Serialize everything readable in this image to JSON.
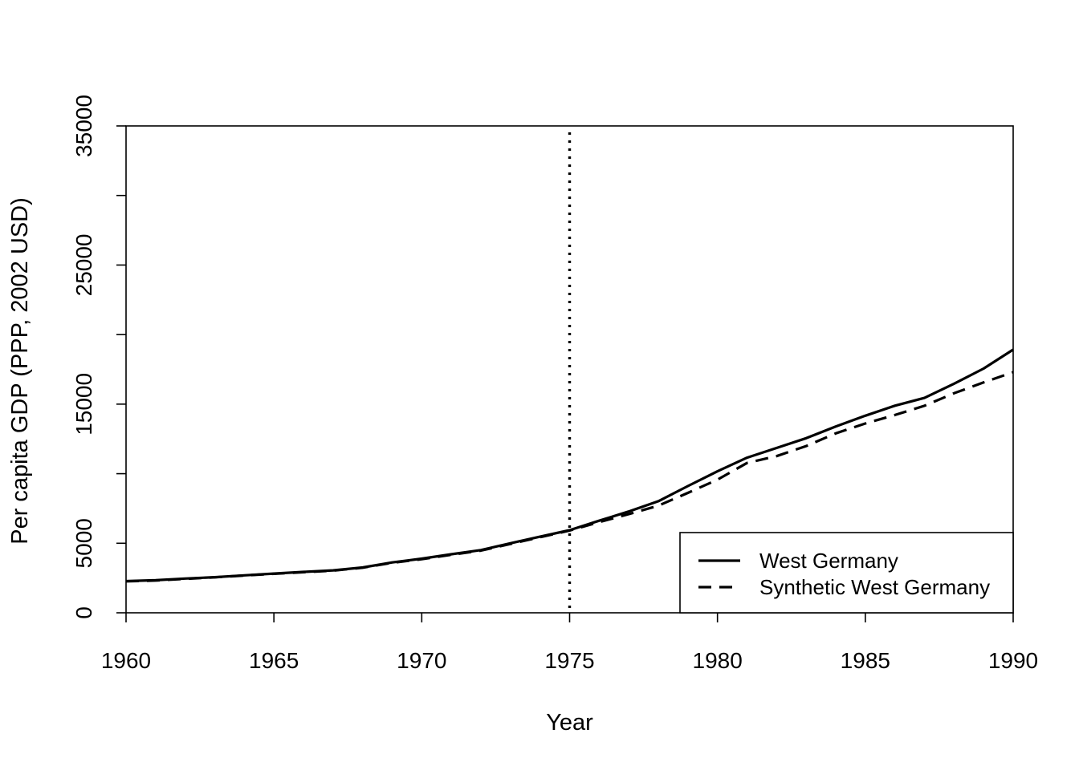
{
  "chart_data": {
    "type": "line",
    "title": "",
    "xlabel": "Year",
    "ylabel": "Per capita GDP (PPP, 2002 USD)",
    "xlim": [
      1960,
      1990
    ],
    "ylim": [
      0,
      35000
    ],
    "x_ticks": [
      "1960",
      "1965",
      "1970",
      "1975",
      "1980",
      "1985",
      "1990"
    ],
    "y_ticks": [
      "0",
      "5000",
      "15000",
      "25000",
      "35000"
    ],
    "y_minor_ticks": [
      10000,
      20000,
      30000
    ],
    "grid": false,
    "legend_position": "bottom-right",
    "reference_line": {
      "x": 1975,
      "style": "dotted"
    },
    "x": [
      1960,
      1961,
      1962,
      1963,
      1964,
      1965,
      1966,
      1967,
      1968,
      1969,
      1970,
      1971,
      1972,
      1973,
      1974,
      1975,
      1976,
      1977,
      1978,
      1979,
      1980,
      1981,
      1982,
      1983,
      1984,
      1985,
      1986,
      1987,
      1988,
      1989,
      1990
    ],
    "series": [
      {
        "name": "West Germany",
        "style": "solid",
        "values": [
          2280,
          2340,
          2460,
          2560,
          2690,
          2820,
          2940,
          3050,
          3260,
          3620,
          3890,
          4210,
          4510,
          5000,
          5470,
          5940,
          6620,
          7280,
          8020,
          9110,
          10170,
          11150,
          11850,
          12550,
          13390,
          14170,
          14890,
          15450,
          16470,
          17560,
          18920
        ]
      },
      {
        "name": "Synthetic West Germany",
        "style": "dashed",
        "values": [
          2260,
          2320,
          2440,
          2550,
          2680,
          2800,
          2920,
          3030,
          3240,
          3590,
          3850,
          4170,
          4470,
          4950,
          5430,
          5910,
          6520,
          7090,
          7700,
          8620,
          9570,
          10770,
          11260,
          11990,
          12900,
          13610,
          14220,
          14880,
          15780,
          16560,
          17300
        ]
      }
    ]
  }
}
